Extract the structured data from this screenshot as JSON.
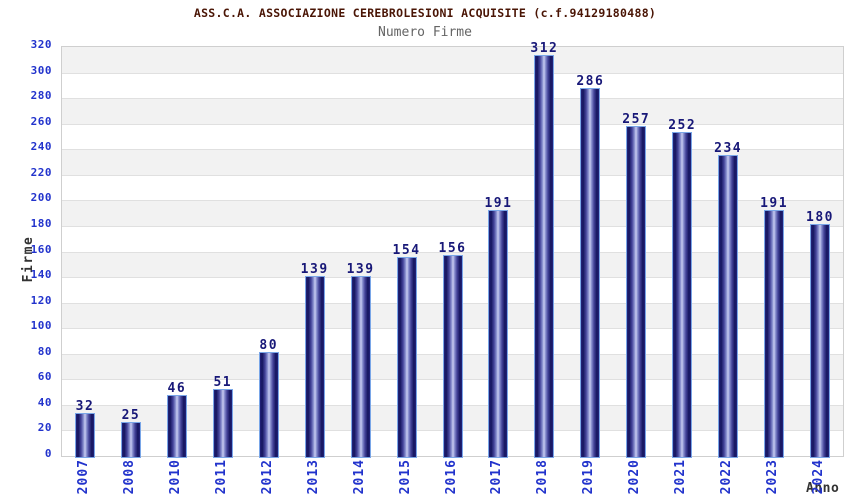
{
  "chart_data": {
    "type": "bar",
    "title": "ASS.C.A. ASSOCIAZIONE CEREBROLESIONI ACQUISITE (c.f.94129180488)",
    "subtitle": "Numero Firme",
    "xlabel": "Anno",
    "ylabel": "Firme",
    "categories": [
      "2007",
      "2008",
      "2010",
      "2011",
      "2012",
      "2013",
      "2014",
      "2015",
      "2016",
      "2017",
      "2018",
      "2019",
      "2020",
      "2021",
      "2022",
      "2023",
      "2024"
    ],
    "values": [
      32,
      25,
      46,
      51,
      80,
      139,
      139,
      154,
      156,
      191,
      312,
      286,
      257,
      252,
      234,
      191,
      180
    ],
    "ylim": [
      0,
      320
    ],
    "ytick_step": 20,
    "yticks": [
      0,
      20,
      40,
      60,
      80,
      100,
      120,
      140,
      160,
      180,
      200,
      220,
      240,
      260,
      280,
      300,
      320
    ],
    "grid": "alternating-horizontal-bands",
    "legend_position": "none",
    "colors": {
      "title": "#4a1505",
      "subtitle": "#656565",
      "axis_tick_label": "#2233cc",
      "bar_value_label": "#181878",
      "bar_dark": "#15155e",
      "bar_light": "#c9cdf0",
      "bar_outline": "#79a6e8",
      "band_gray": "#f2f2f2",
      "band_white": "#ffffff",
      "gridline": "#e0e0e0",
      "plot_border": "#cfcfcf",
      "axis_title": "#333333"
    }
  }
}
